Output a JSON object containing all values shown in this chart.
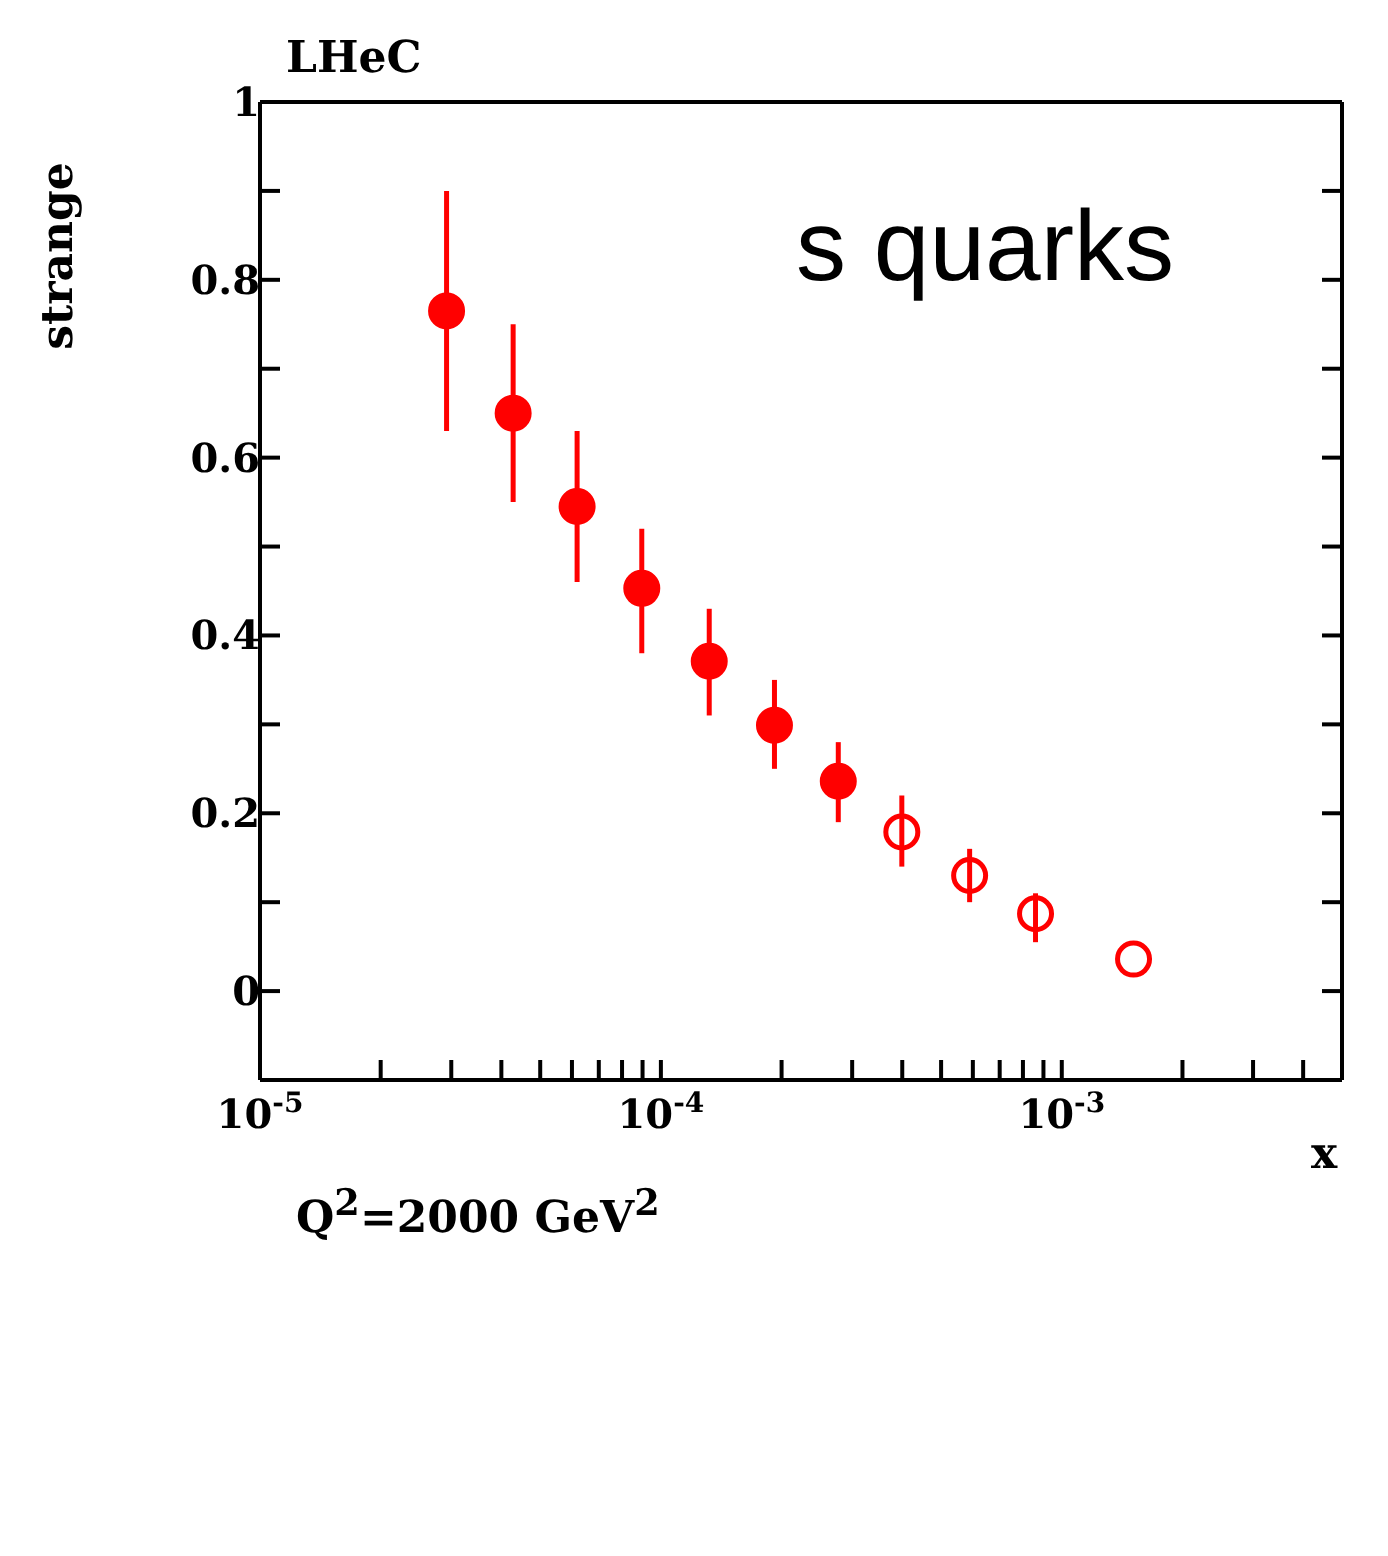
{
  "chart_data": {
    "type": "scatter",
    "xlabel": "x",
    "ylabel": "strange",
    "annotations": [
      "LHeC",
      "s quarks",
      "Q$^{2}$=2000 GeV$^{2}$"
    ],
    "log": "x",
    "marker": "circle",
    "grid": false,
    "legend": false,
    "xlim": [
      1e-05,
      0.005
    ],
    "xticks": [
      {
        "value": 1e-05,
        "label": "10$^{-5}$"
      },
      {
        "value": 2e-05,
        "label": null
      },
      {
        "value": 3e-05,
        "label": null
      },
      {
        "value": 4e-05,
        "label": null
      },
      {
        "value": 5e-05,
        "label": null
      },
      {
        "value": 6e-05,
        "label": null
      },
      {
        "value": 7e-05,
        "label": null
      },
      {
        "value": 8e-05,
        "label": null
      },
      {
        "value": 9e-05,
        "label": null
      },
      {
        "value": 0.0001,
        "label": "10$^{-4}$"
      },
      {
        "value": 0.0002,
        "label": null
      },
      {
        "value": 0.0003,
        "label": null
      },
      {
        "value": 0.0004,
        "label": null
      },
      {
        "value": 0.0005,
        "label": null
      },
      {
        "value": 0.0006,
        "label": null
      },
      {
        "value": 0.0007,
        "label": null
      },
      {
        "value": 0.0008,
        "label": null
      },
      {
        "value": 0.0009,
        "label": null
      },
      {
        "value": 0.001,
        "label": "10$^{-3}$"
      },
      {
        "value": 0.002,
        "label": null
      },
      {
        "value": 0.003,
        "label": null
      },
      {
        "value": 0.004,
        "label": null
      },
      {
        "value": 0.005,
        "label": null
      }
    ],
    "ylim": [
      -0.1,
      1
    ],
    "yticks": [
      0,
      {
        "value": 0.1,
        "label": null
      },
      0.2,
      {
        "value": 0.3,
        "label": null
      },
      0.4,
      {
        "value": 0.5,
        "label": null
      },
      0.6,
      {
        "value": 0.7,
        "label": null
      },
      0.8,
      {
        "value": 0.9,
        "label": null
      },
      1
    ],
    "series": [
      {
        "color": "#ff0000",
        "x": [
          2.92e-05,
          4.28e-05,
          6.18e-05,
          8.96e-05,
          0.000132,
          0.000192,
          0.000277
        ],
        "values": [
          0.765,
          0.65,
          0.545,
          0.453,
          0.371,
          0.299,
          0.236
        ],
        "errors": [
          [
            0.63,
            0.9
          ],
          [
            0.55,
            0.75
          ],
          [
            0.46,
            0.63
          ],
          [
            0.38,
            0.52
          ],
          [
            0.31,
            0.43
          ],
          [
            0.25,
            0.35
          ],
          [
            0.19,
            0.28
          ]
        ]
      },
      {
        "color": "#ff0000",
        "x": [
          0.000399,
          0.000589,
          0.00086,
          0.00151
        ],
        "values": [
          0.179,
          0.13,
          0.087,
          0.036
        ],
        "errors": [
          [
            0.14,
            0.22
          ],
          [
            0.1,
            0.16
          ],
          [
            0.055,
            0.11
          ],
          null
        ]
      }
    ]
  }
}
